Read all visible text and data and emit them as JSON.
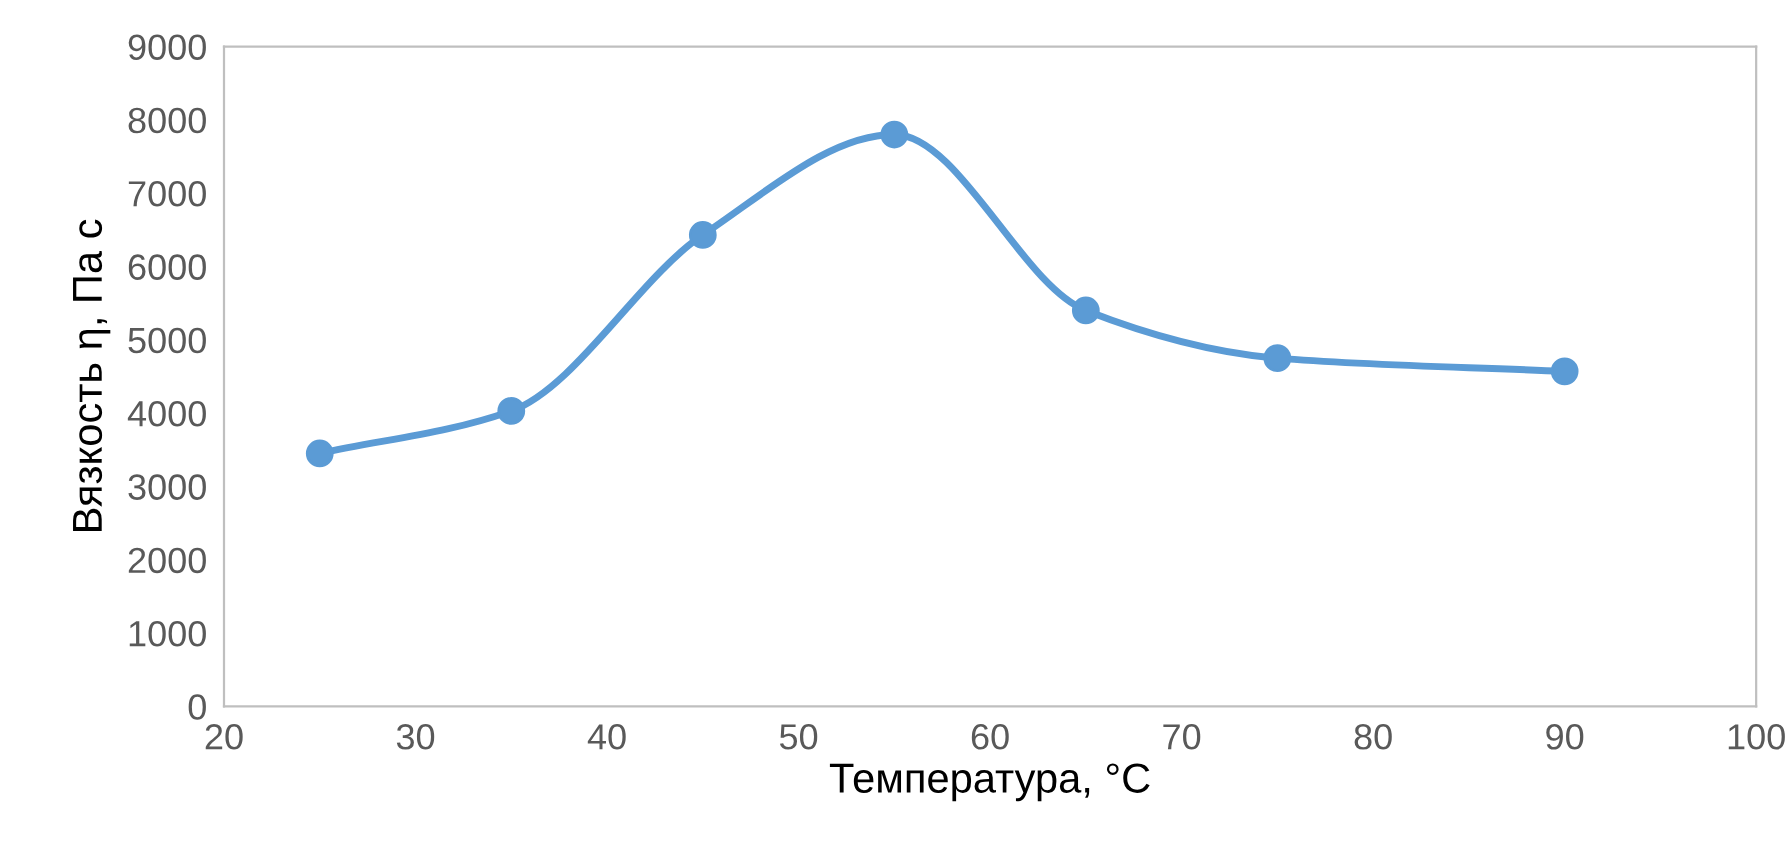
{
  "chart_data": {
    "type": "line",
    "xlabel": "Температура, °C",
    "ylabel": "Вязкость η, Па с",
    "x": [
      25,
      35,
      45,
      55,
      65,
      75,
      90
    ],
    "series": [
      {
        "color": "#5b9bd5",
        "values": [
          3450,
          4030,
          6430,
          7800,
          5400,
          4750,
          4570
        ]
      }
    ],
    "xlim": [
      20,
      100
    ],
    "xticks": [
      20,
      30,
      40,
      50,
      60,
      70,
      80,
      90,
      100
    ],
    "ylim": [
      0,
      9000
    ],
    "yticks": [
      0,
      1000,
      2000,
      3000,
      4000,
      5000,
      6000,
      7000,
      8000,
      9000
    ],
    "grid": false,
    "legend": false,
    "marker": "circle",
    "line_style": "solid"
  }
}
